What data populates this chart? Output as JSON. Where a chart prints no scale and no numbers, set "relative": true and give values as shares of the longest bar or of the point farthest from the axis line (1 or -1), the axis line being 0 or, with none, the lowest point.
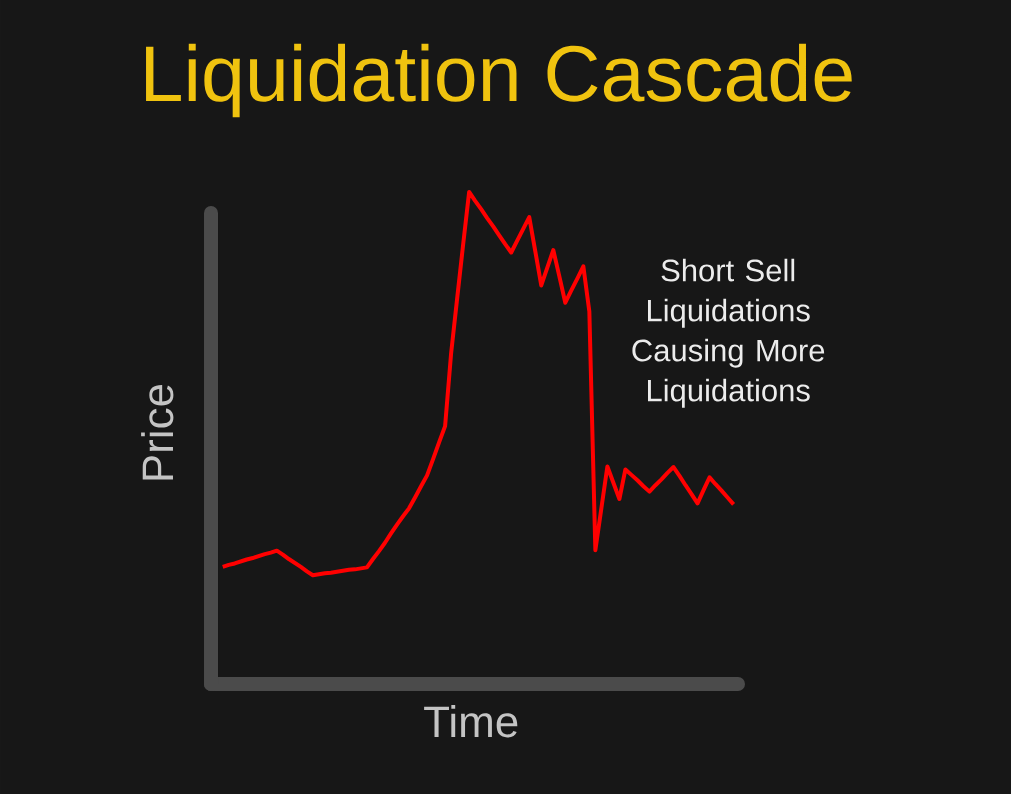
{
  "chart_data": {
    "type": "line",
    "title": "Liquidation Cascade",
    "xlabel": "Time",
    "ylabel": "Price",
    "relative": true,
    "line_style": "solid",
    "color": "#ff0000",
    "categories": [
      null,
      null,
      null,
      null,
      null,
      null,
      null,
      null,
      null,
      null,
      null,
      null,
      null,
      null,
      null,
      null,
      null,
      null,
      null,
      null,
      null,
      null,
      null,
      null,
      null,
      null,
      null,
      null,
      null,
      null,
      null,
      null,
      null,
      null,
      null,
      null,
      null,
      null,
      null,
      null,
      null,
      null,
      null,
      null,
      null,
      null,
      null,
      null,
      null,
      null,
      null,
      null,
      null,
      null,
      null,
      null,
      null,
      null,
      null,
      null,
      null,
      null,
      null,
      null,
      null,
      null,
      null,
      null,
      null,
      null,
      null,
      null,
      null,
      null,
      null,
      null,
      null,
      null,
      null,
      null,
      null,
      null,
      null,
      null,
      null,
      null
    ],
    "values": [
      0.238,
      0.242,
      0.245,
      0.249,
      0.253,
      0.256,
      0.26,
      0.264,
      0.267,
      0.271,
      0.263,
      0.254,
      0.246,
      0.238,
      0.229,
      0.221,
      0.223,
      0.225,
      0.226,
      0.228,
      0.23,
      0.232,
      0.233,
      0.235,
      0.237,
      0.254,
      0.27,
      0.287,
      0.306,
      0.324,
      0.341,
      0.357,
      0.379,
      0.402,
      0.424,
      0.457,
      0.491,
      0.524,
      0.672,
      0.783,
      0.893,
      1.0,
      0.982,
      0.965,
      0.947,
      0.93,
      0.912,
      0.894,
      0.877,
      0.901,
      0.925,
      0.949,
      0.88,
      0.81,
      0.846,
      0.882,
      0.829,
      0.775,
      0.8,
      0.824,
      0.849,
      0.757,
      0.272,
      0.357,
      0.442,
      0.409,
      0.376,
      0.436,
      0.425,
      0.414,
      0.402,
      0.391,
      0.404,
      0.416,
      0.429,
      0.441,
      0.423,
      0.404,
      0.386,
      0.367,
      0.394,
      0.42,
      0.406,
      0.393,
      0.379,
      0.365
    ],
    "annotations": [
      "Short Sell Liquidations Causing More Liquidations"
    ]
  }
}
